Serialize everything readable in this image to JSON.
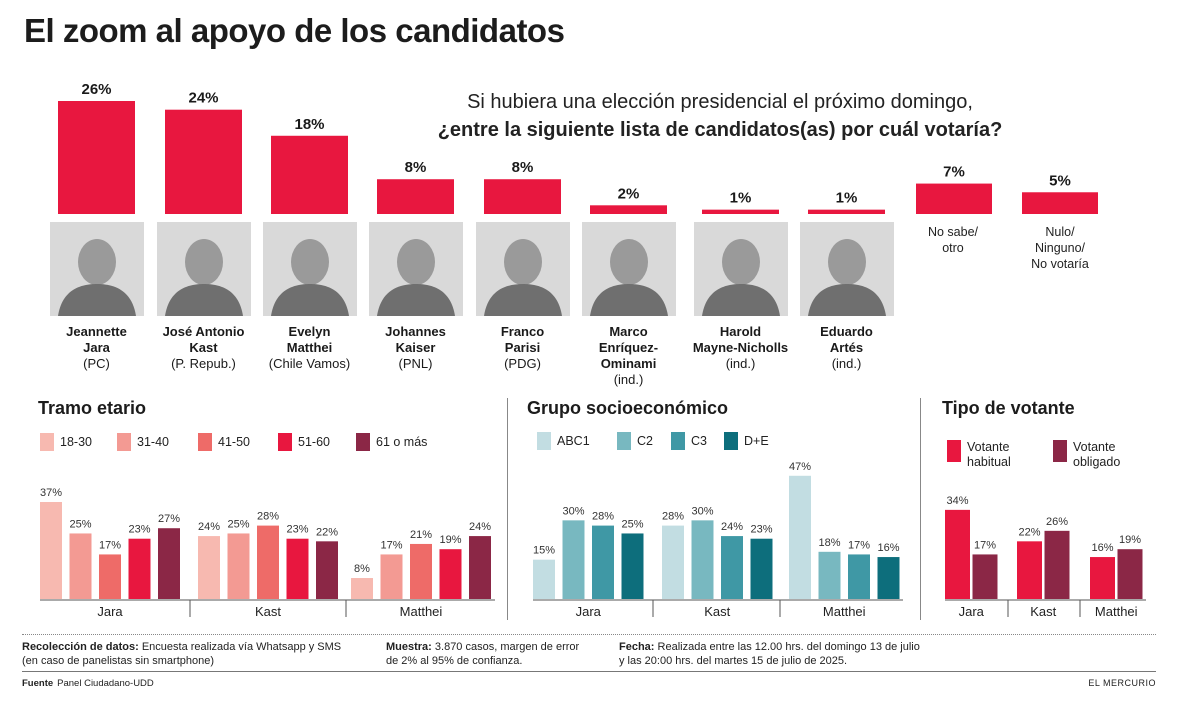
{
  "title": "El zoom al apoyo de los candidatos",
  "question": {
    "line1": "Si hubiera una elección presidencial el próximo domingo,",
    "line2": "¿entre la siguiente lista de candidatos(as) por cuál votaría?"
  },
  "colors": {
    "primary": "#e8173f",
    "age": [
      "#f7b9b0",
      "#f39a93",
      "#ee6b68",
      "#e8173f",
      "#8b2746"
    ],
    "ses": [
      "#c2dde2",
      "#78b8c0",
      "#3f98a5",
      "#0d6e7c"
    ],
    "voter": [
      "#e8173f",
      "#8b2746"
    ]
  },
  "chart_data": [
    {
      "type": "bar",
      "id": "overall",
      "categories": [
        "Jeannette Jara",
        "José Antonio Kast",
        "Evelyn Matthei",
        "Johannes Kaiser",
        "Franco Parisi",
        "Marco Enríquez-Ominami",
        "Harold Mayne-Nicholls",
        "Eduardo Artés",
        "No sabe/otro",
        "Nulo/Ninguno/No votaría"
      ],
      "values": [
        26,
        24,
        18,
        8,
        8,
        2,
        1,
        1,
        7,
        5
      ],
      "value_suffix": "%"
    },
    {
      "type": "bar",
      "id": "age",
      "title": "Tramo etario",
      "categories": [
        "Jara",
        "Kast",
        "Matthei"
      ],
      "series": [
        {
          "name": "18-30",
          "values": [
            37,
            24,
            8
          ]
        },
        {
          "name": "31-40",
          "values": [
            25,
            25,
            17
          ]
        },
        {
          "name": "41-50",
          "values": [
            17,
            28,
            21
          ]
        },
        {
          "name": "51-60",
          "values": [
            23,
            23,
            19
          ]
        },
        {
          "name": "61 o más",
          "values": [
            27,
            22,
            24
          ]
        }
      ],
      "legend": "top"
    },
    {
      "type": "bar",
      "id": "ses",
      "title": "Grupo socioeconómico",
      "categories": [
        "Jara",
        "Kast",
        "Matthei"
      ],
      "series": [
        {
          "name": "ABC1",
          "values": [
            15,
            28,
            47
          ]
        },
        {
          "name": "C2",
          "values": [
            30,
            30,
            18
          ]
        },
        {
          "name": "C3",
          "values": [
            28,
            24,
            17
          ]
        },
        {
          "name": "D+E",
          "values": [
            25,
            23,
            16
          ]
        }
      ],
      "legend": "top"
    },
    {
      "type": "bar",
      "id": "voter",
      "title": "Tipo de votante",
      "categories": [
        "Jara",
        "Kast",
        "Matthei"
      ],
      "series": [
        {
          "name": "Votante habitual",
          "values": [
            34,
            22,
            16
          ]
        },
        {
          "name": "Votante obligado",
          "values": [
            17,
            26,
            19
          ]
        }
      ],
      "legend": "top"
    }
  ],
  "candidates": [
    {
      "name1": "Jeannette",
      "name2": "Jara",
      "party": "(PC)"
    },
    {
      "name1": "José Antonio",
      "name2": "Kast",
      "party": "(P. Repub.)"
    },
    {
      "name1": "Evelyn",
      "name2": "Matthei",
      "party": "(Chile Vamos)"
    },
    {
      "name1": "Johannes",
      "name2": "Kaiser",
      "party": "(PNL)"
    },
    {
      "name1": "Franco",
      "name2": "Parisi",
      "party": "(PDG)"
    },
    {
      "name1": "Marco",
      "name2": "Enríquez-Ominami",
      "party": "(ind.)"
    },
    {
      "name1": "Harold",
      "name2": "Mayne-Nicholls",
      "party": "(ind.)"
    },
    {
      "name1": "Eduardo",
      "name2": "Artés",
      "party": "(ind.)"
    }
  ],
  "others": [
    {
      "line1": "No sabe/",
      "line2": "otro",
      "line3": ""
    },
    {
      "line1": "Nulo/",
      "line2": "Ninguno/",
      "line3": "No votaría"
    }
  ],
  "sections": {
    "age": {
      "title": "Tramo etario",
      "legend": [
        "18-30",
        "31-40",
        "41-50",
        "51-60",
        "61 o más"
      ]
    },
    "ses": {
      "title": "Grupo socioeconómico",
      "legend": [
        "ABC1",
        "C2",
        "C3",
        "D+E"
      ]
    },
    "voter": {
      "title": "Tipo de votante",
      "legend": [
        {
          "l1": "Votante",
          "l2": "habitual"
        },
        {
          "l1": "Votante",
          "l2": "obligado"
        }
      ]
    }
  },
  "footer": {
    "data_label": "Recolección de datos:",
    "data_text1": " Encuesta realizada vía Whatsapp y SMS",
    "data_text2": "(en caso de panelistas sin smartphone)",
    "sample_label": "Muestra:",
    "sample_text1": " 3.870 casos, margen de error",
    "sample_text2": "de 2% al 95% de confianza.",
    "date_label": "Fecha:",
    "date_text1": " Realizada entre las 12.00 hrs. del domingo 13 de julio",
    "date_text2": "y las 20:00 hrs. del martes 15 de julio de 2025.",
    "source_label": "Fuente",
    "source_text": "Panel Ciudadano-UDD",
    "brand": "EL MERCURIO"
  }
}
